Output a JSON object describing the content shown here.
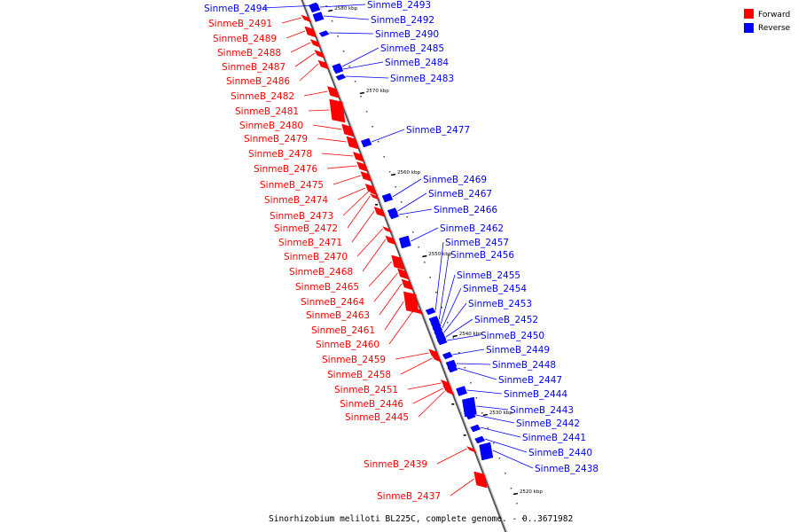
{
  "caption": "Sinorhizobium meliloti BL225C, complete genome. - 0..3671982",
  "colors": {
    "forward": "#ff0000",
    "reverse": "#0000ff"
  },
  "legend": [
    {
      "label": "Forward",
      "color": "#ff0000"
    },
    {
      "label": "Reverse",
      "color": "#0000ff"
    }
  ],
  "ticks": [
    "2580 kbp",
    "2570 kbp",
    "2560 kbp",
    "2550 kbp",
    "2540 kbp",
    "2530 kbp",
    "2520 kbp"
  ],
  "forward_genes": [
    "SinmeB_2491",
    "SinmeB_2489",
    "SinmeB_2488",
    "SinmeB_2487",
    "SinmeB_2486",
    "SinmeB_2482",
    "SinmeB_2481",
    "SinmeB_2480",
    "SinmeB_2479",
    "SinmeB_2478",
    "SinmeB_2476",
    "SinmeB_2475",
    "SinmeB_2474",
    "SinmeB_2473",
    "SinmeB_2472",
    "SinmeB_2471",
    "SinmeB_2470",
    "SinmeB_2468",
    "SinmeB_2465",
    "SinmeB_2464",
    "SinmeB_2463",
    "SinmeB_2461",
    "SinmeB_2460",
    "SinmeB_2459",
    "SinmeB_2458",
    "SinmeB_2451",
    "SinmeB_2446",
    "SinmeB_2445",
    "SinmeB_2439",
    "SinmeB_2437"
  ],
  "reverse_genes": [
    "SinmeB_2494",
    "SinmeB_2493",
    "SinmeB_2492",
    "SinmeB_2490",
    "SinmeB_2485",
    "SinmeB_2484",
    "SinmeB_2483",
    "SinmeB_2477",
    "SinmeB_2469",
    "SinmeB_2467",
    "SinmeB_2466",
    "SinmeB_2462",
    "SinmeB_2457",
    "SinmeB_2456",
    "SinmeB_2455",
    "SinmeB_2454",
    "SinmeB_2453",
    "SinmeB_2452",
    "SinmeB_2450",
    "SinmeB_2449",
    "SinmeB_2448",
    "SinmeB_2447",
    "SinmeB_2444",
    "SinmeB_2443",
    "SinmeB_2442",
    "SinmeB_2441",
    "SinmeB_2440",
    "SinmeB_2438"
  ]
}
